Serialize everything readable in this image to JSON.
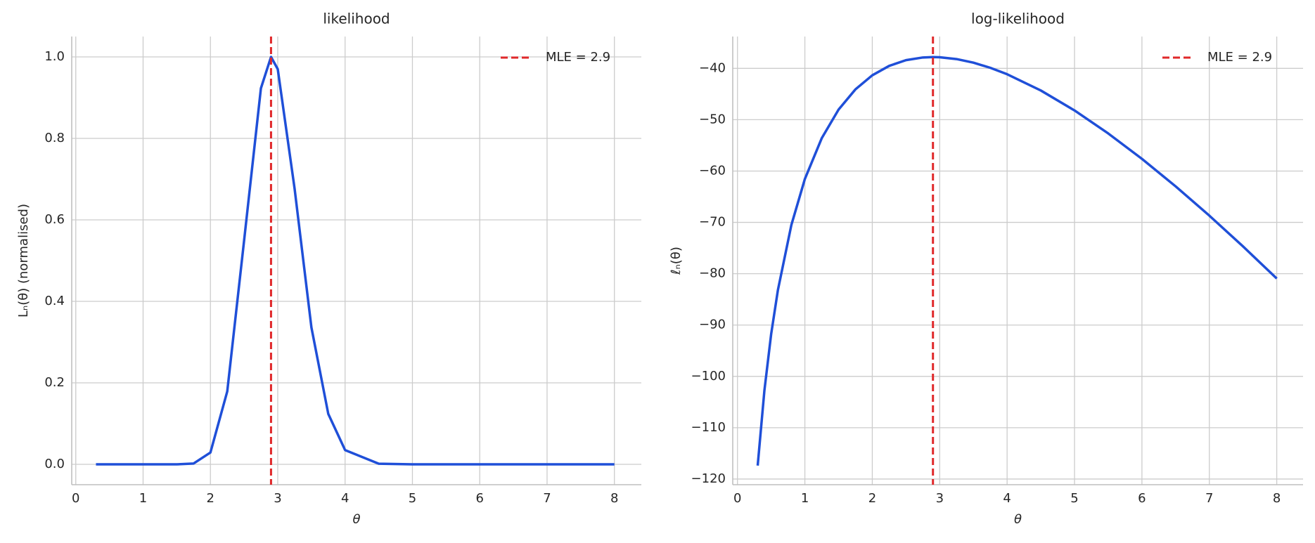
{
  "chart_data": [
    {
      "type": "line",
      "title": "likelihood",
      "x_label": "θ",
      "y_label": "Lₙ(θ) (normalised)",
      "x": [
        0.3,
        0.4,
        0.5,
        0.6,
        0.8,
        1.0,
        1.25,
        1.5,
        1.75,
        2.0,
        2.25,
        2.5,
        2.75,
        2.9,
        3.0,
        3.25,
        3.5,
        3.75,
        4.0,
        4.5,
        5.0,
        5.5,
        6.0,
        6.5,
        7.0,
        7.5,
        8.0
      ],
      "series": [
        {
          "color": "#1f4fd8",
          "values": [
            0,
            0,
            0,
            0,
            0,
            0,
            0,
            0,
            0.002,
            0.029,
            0.179,
            0.549,
            0.923,
            1,
            0.97,
            0.677,
            0.336,
            0.124,
            0.035,
            0.0015,
            0,
            0,
            0,
            0,
            0,
            0,
            0
          ]
        }
      ],
      "vlines": [
        {
          "x": 2.9,
          "label": "MLE  = 2.9",
          "color": "#e0282a"
        }
      ],
      "legend": "upper right",
      "grid": true,
      "xlim": [
        -0.06,
        8.4
      ],
      "xticks": [
        0,
        1,
        2,
        3,
        4,
        5,
        6,
        7,
        8
      ],
      "ylim": [
        -0.05,
        1.05
      ],
      "yticks": [
        {
          "value": 0,
          "label": "0.0"
        },
        0.2,
        0.4,
        0.6,
        0.8,
        {
          "value": 1,
          "label": "1.0"
        }
      ]
    },
    {
      "type": "line",
      "title": "log-likelihood",
      "x_label": "θ",
      "y_label": "ℓₙ(θ)",
      "x": [
        0.3,
        0.4,
        0.5,
        0.6,
        0.8,
        1.0,
        1.25,
        1.5,
        1.75,
        2.0,
        2.25,
        2.5,
        2.75,
        2.9,
        3.0,
        3.25,
        3.5,
        3.75,
        4.0,
        4.5,
        5.0,
        5.5,
        6.0,
        6.5,
        7.0,
        7.5,
        8.0
      ],
      "series": [
        {
          "color": "#1f4fd8",
          "values": [
            -117.38,
            -102.7,
            -91.75,
            -83.18,
            -70.49,
            -61.55,
            -53.61,
            -48.03,
            -44.09,
            -41.35,
            -39.52,
            -38.4,
            -37.88,
            -37.8,
            -37.83,
            -38.19,
            -38.89,
            -39.89,
            -41.14,
            -44.31,
            -48.2,
            -52.68,
            -57.63,
            -62.99,
            -68.69,
            -74.69,
            -80.94
          ]
        }
      ],
      "vlines": [
        {
          "x": 2.9,
          "label": "MLE  = 2.9",
          "color": "#e0282a"
        }
      ],
      "legend": "upper right",
      "grid": true,
      "xlim": [
        -0.07,
        8.39
      ],
      "xticks": [
        0,
        1,
        2,
        3,
        4,
        5,
        6,
        7,
        8
      ],
      "ylim": [
        -121.1,
        -33.8
      ],
      "yticks": [
        {
          "value": -120,
          "label": "−120"
        },
        {
          "value": -110,
          "label": "−110"
        },
        {
          "value": -100,
          "label": "−100"
        },
        {
          "value": -90,
          "label": "−90"
        },
        {
          "value": -80,
          "label": "−80"
        },
        {
          "value": -70,
          "label": "−70"
        },
        {
          "value": -60,
          "label": "−60"
        },
        {
          "value": -50,
          "label": "−50"
        },
        {
          "value": -40,
          "label": "−40"
        }
      ]
    }
  ]
}
